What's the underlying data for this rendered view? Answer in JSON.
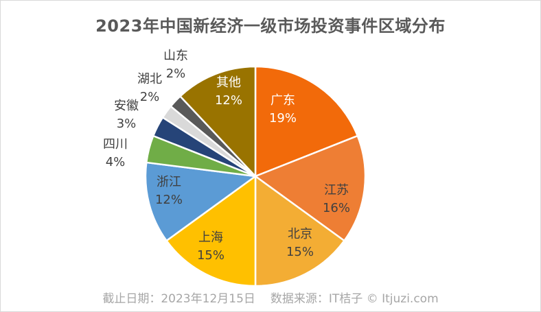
{
  "chart_data": {
    "type": "pie",
    "title": "2023年中国新经济一级市场投资事件区域分布",
    "slices": [
      {
        "label": "广东",
        "value": 19,
        "display": "19%",
        "color": "#f26a0a",
        "label_color": "#ffffff"
      },
      {
        "label": "江苏",
        "value": 16,
        "display": "16%",
        "color": "#ee7e34",
        "label_color": "#404040"
      },
      {
        "label": "北京",
        "value": 15,
        "display": "15%",
        "color": "#f3ad34",
        "label_color": "#404040"
      },
      {
        "label": "上海",
        "value": 15,
        "display": "15%",
        "color": "#ffc000",
        "label_color": "#404040"
      },
      {
        "label": "浙江",
        "value": 12,
        "display": "12%",
        "color": "#5b9bd5",
        "label_color": "#404040"
      },
      {
        "label": "四川",
        "value": 4,
        "display": "4%",
        "color": "#70ad47",
        "label_color": "#404040"
      },
      {
        "label": "安徽",
        "value": 3,
        "display": "3%",
        "color": "#264478",
        "label_color": "#404040"
      },
      {
        "label": "湖北",
        "value": 2,
        "display": "2%",
        "color": "#d9d9d9",
        "label_color": "#404040"
      },
      {
        "label": "山东",
        "value": 2,
        "display": "2%",
        "color": "#595959",
        "label_color": "#404040"
      },
      {
        "label": "其他",
        "value": 12,
        "display": "12%",
        "color": "#997300",
        "label_color": "#ffffff"
      }
    ]
  },
  "footer": {
    "date": "截止日期：2023年12月15日",
    "source": "数据来源：IT桔子 © Itjuzi.com"
  }
}
